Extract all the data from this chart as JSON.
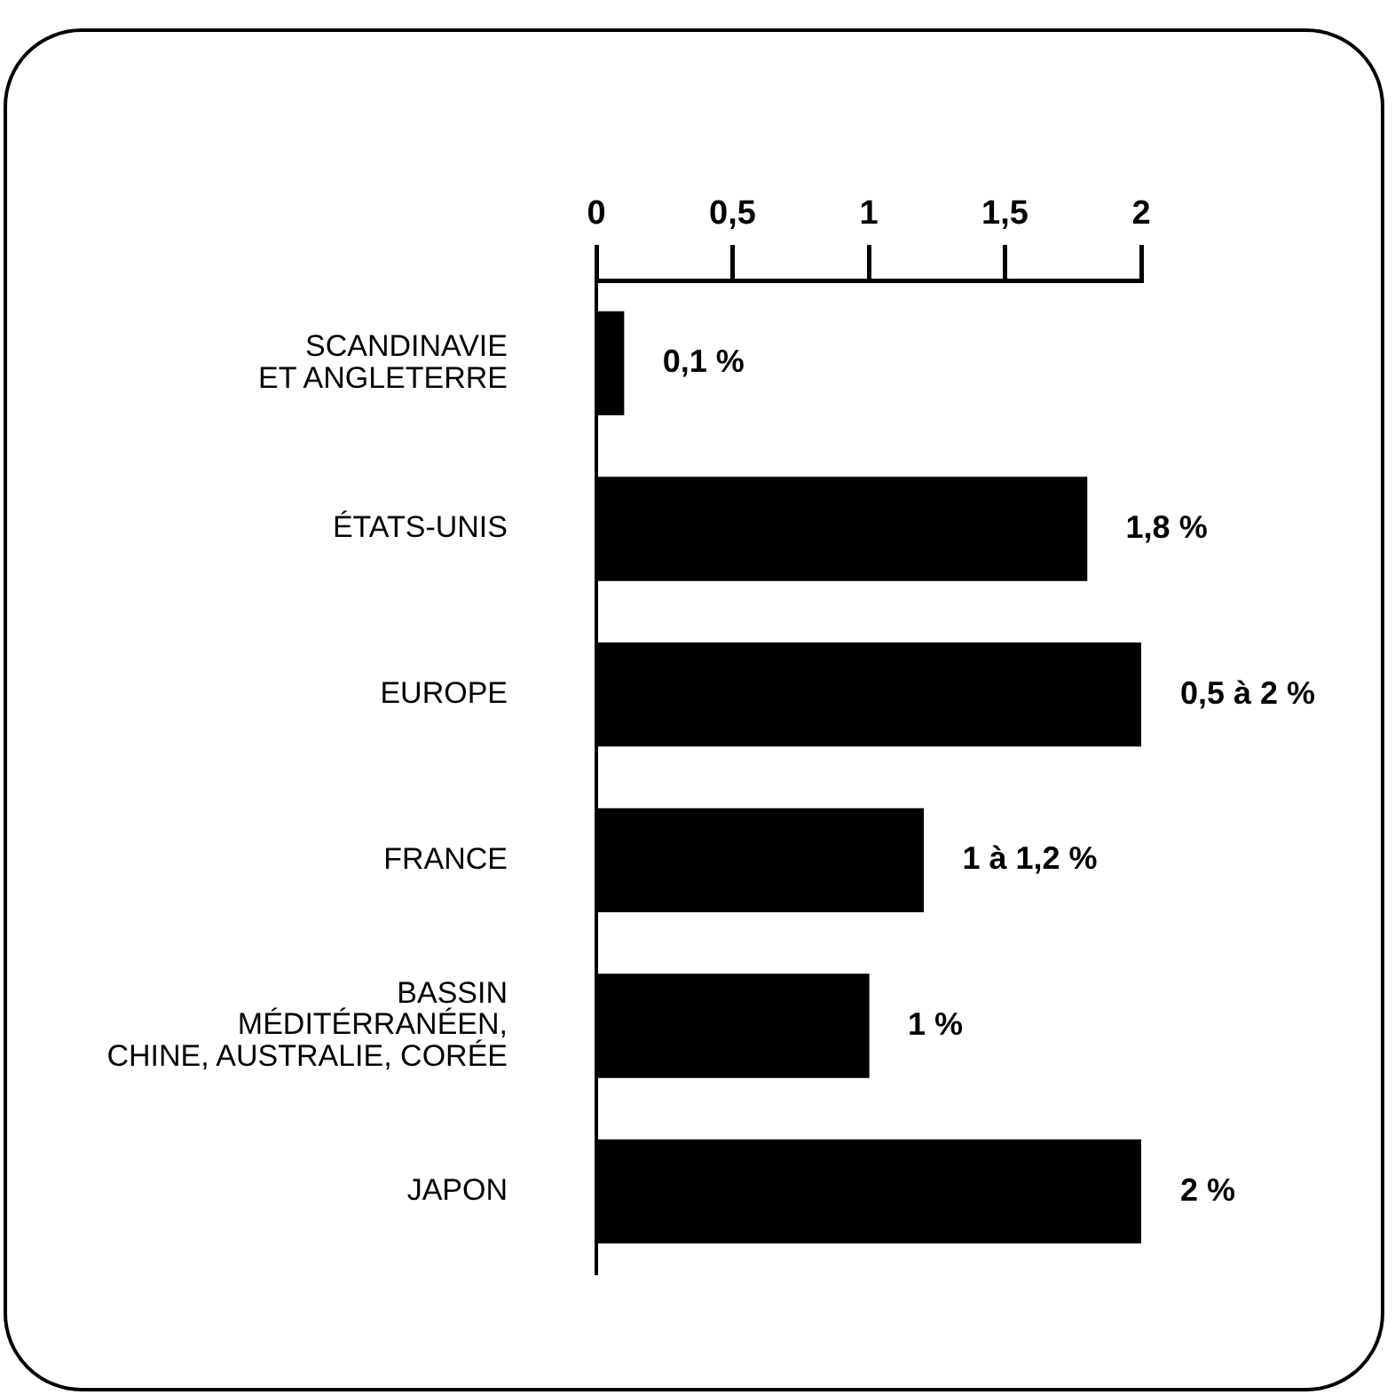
{
  "chart_data": {
    "type": "bar",
    "orientation": "horizontal",
    "categories": [
      "SCANDINAVIE\nET ANGLETERRE",
      "ÉTATS-UNIS",
      "EUROPE",
      "FRANCE",
      "BASSIN\nMÉDITÉRRANÉEN,\nCHINE, AUSTRALIE, CORÉE",
      "JAPON"
    ],
    "values": [
      0.1,
      1.8,
      2,
      1.2,
      1,
      2
    ],
    "value_labels": [
      "0,1 %",
      "1,8 %",
      "0,5 à 2 %",
      "1 à 1,2 %",
      "1 %",
      "2 %"
    ],
    "color": "#000000",
    "xlim": [
      0,
      2
    ],
    "xticks": [
      0,
      {
        "value": 0.5,
        "label": "0,5"
      },
      1,
      {
        "value": 1.5,
        "label": "1,5"
      },
      2
    ],
    "grid": false,
    "legend": false
  }
}
